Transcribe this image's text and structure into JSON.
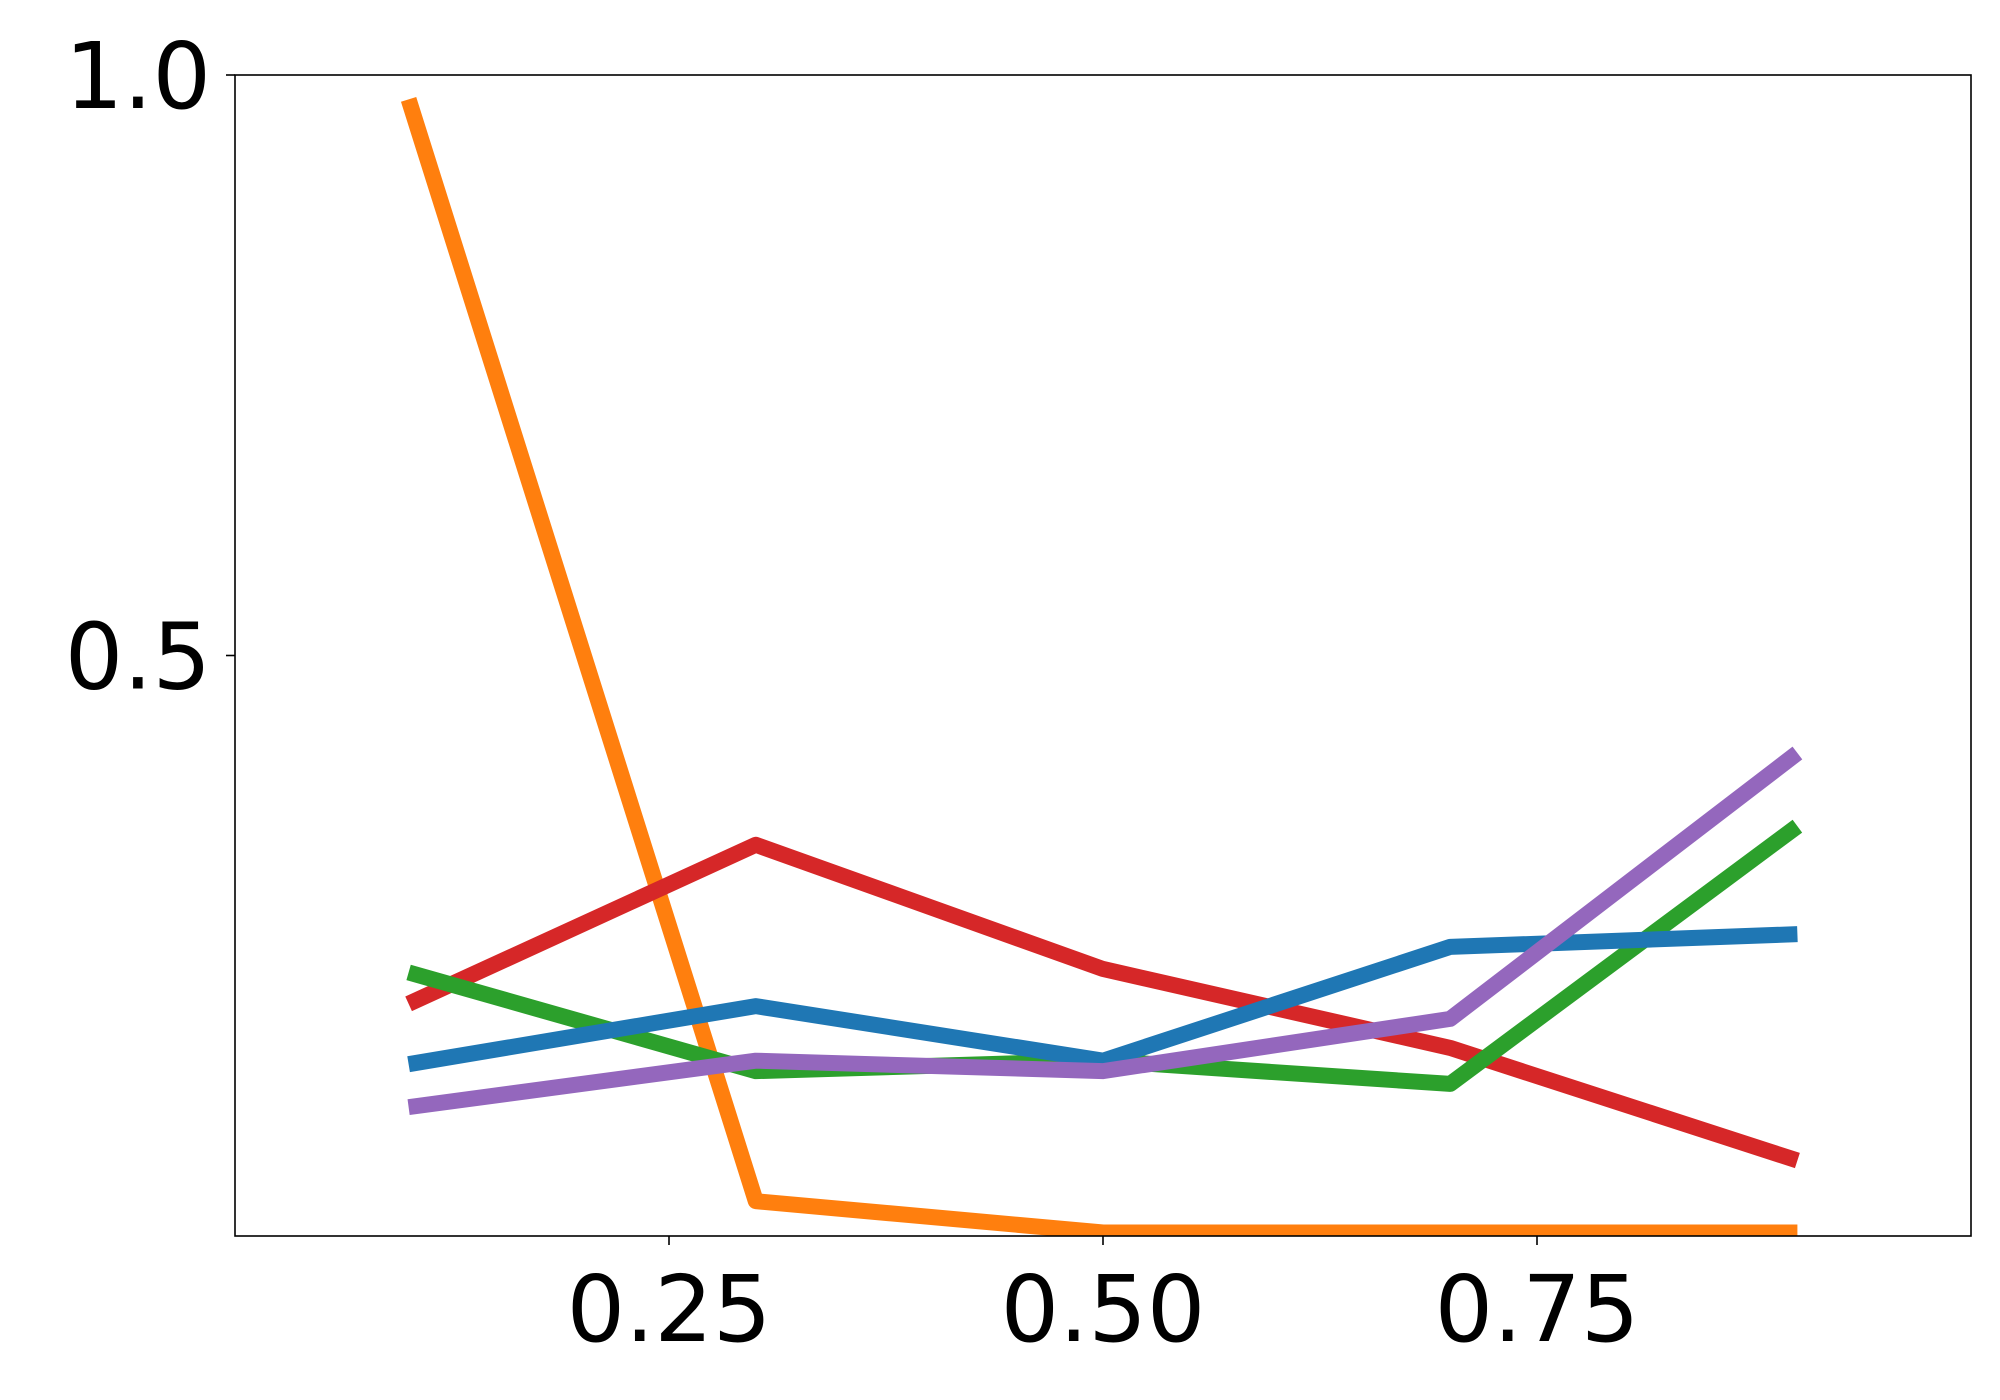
{
  "chart_data": {
    "type": "line",
    "x": [
      0.1,
      0.3,
      0.5,
      0.7,
      0.9
    ],
    "series": [
      {
        "color": "#ff7f0e",
        "values": [
          0.979,
          0.03,
          0.003,
          0.003,
          0.003
        ]
      },
      {
        "color": "#d62728",
        "values": [
          0.2,
          0.337,
          0.23,
          0.162,
          0.065
        ]
      },
      {
        "color": "#2ca02c",
        "values": [
          0.227,
          0.142,
          0.151,
          0.131,
          0.353
        ]
      },
      {
        "color": "#1f77b4",
        "values": [
          0.148,
          0.198,
          0.151,
          0.249,
          0.26
        ]
      },
      {
        "color": "#9467bd",
        "values": [
          0.111,
          0.151,
          0.142,
          0.187,
          0.416
        ]
      }
    ],
    "xlim": [
      0,
      1
    ],
    "ylim": [
      0,
      1
    ],
    "xticks": [
      {
        "value": 0.25,
        "label": "0.25"
      },
      {
        "value": 0.5,
        "label": "0.50"
      },
      {
        "value": 0.75,
        "label": "0.75"
      }
    ],
    "yticks": [
      {
        "value": 0.5,
        "label": "0.5"
      },
      {
        "value": 1,
        "label": "1.0"
      }
    ],
    "grid": false
  }
}
